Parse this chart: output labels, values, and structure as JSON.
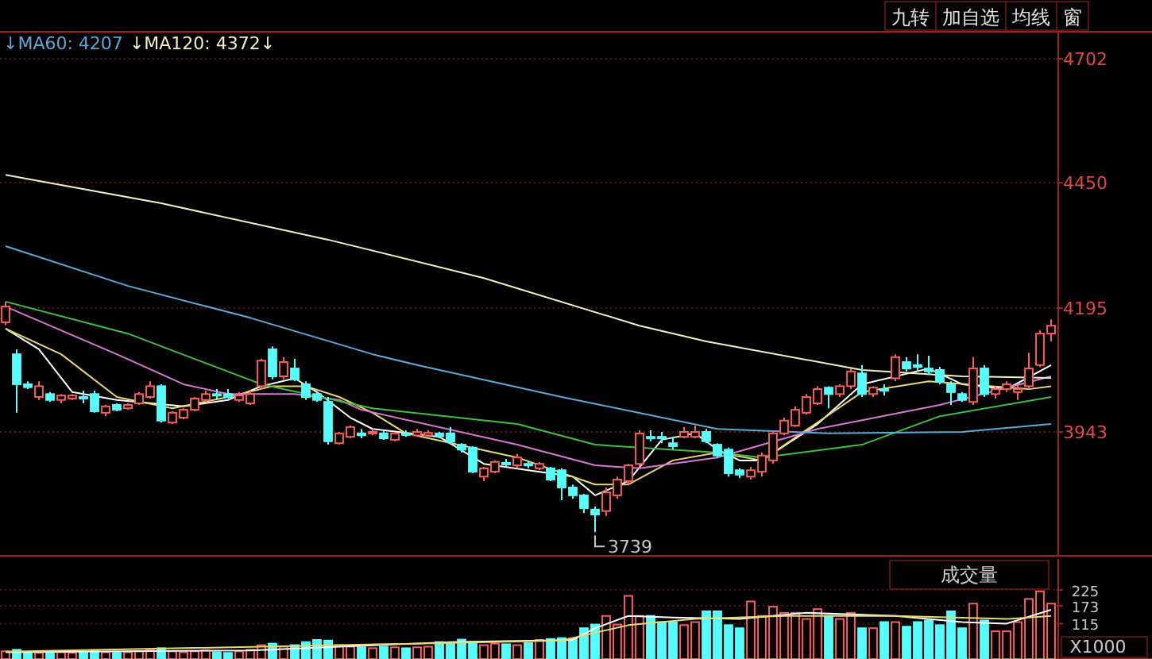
{
  "chart_data": [
    {
      "type": "candlestick",
      "categories": [
        null,
        null,
        null,
        null,
        null,
        null,
        null,
        null,
        null,
        null,
        null,
        null,
        null,
        null,
        null,
        null,
        null,
        null,
        null,
        null,
        null,
        null,
        null,
        null,
        null,
        null,
        null,
        null,
        null,
        null,
        null,
        null,
        null,
        null,
        null,
        null,
        null,
        null,
        null,
        null,
        null,
        null,
        null,
        null,
        null,
        null,
        null,
        null,
        null,
        null,
        null,
        null,
        null,
        null,
        null,
        null,
        null,
        null,
        null,
        null,
        null,
        null,
        null,
        null,
        null,
        null,
        null,
        null,
        null,
        null,
        null,
        null,
        null,
        null,
        null,
        null,
        null,
        null,
        null,
        null,
        null,
        null,
        null,
        null,
        null,
        null,
        null,
        null,
        null,
        null,
        null,
        null,
        null,
        null,
        null
      ],
      "ohlc": [
        [
          4166,
          4208,
          4160,
          4198
        ],
        [
          4101,
          4111,
          3982,
          4040
        ],
        [
          4040,
          4046,
          4030,
          4034
        ],
        [
          4014,
          4046,
          4008,
          4036
        ],
        [
          4020,
          4024,
          4004,
          4008
        ],
        [
          4008,
          4020,
          4001,
          4017
        ],
        [
          4011,
          4020,
          4008,
          4017
        ],
        [
          4014,
          4027,
          4001,
          4011
        ],
        [
          4020,
          4027,
          3982,
          3985
        ],
        [
          3982,
          3998,
          3975,
          3995
        ],
        [
          3998,
          4001,
          3985,
          3988
        ],
        [
          3991,
          4001,
          3988,
          3998
        ],
        [
          4001,
          4024,
          3998,
          4020
        ],
        [
          4014,
          4046,
          4011,
          4036
        ],
        [
          4036,
          4040,
          3962,
          3966
        ],
        [
          3962,
          3985,
          3959,
          3982
        ],
        [
          3972,
          3991,
          3969,
          3988
        ],
        [
          3988,
          4014,
          3985,
          4011
        ],
        [
          4008,
          4027,
          4004,
          4020
        ],
        [
          4020,
          4030,
          4011,
          4017
        ],
        [
          4020,
          4030,
          4011,
          4014
        ],
        [
          4008,
          4024,
          4004,
          4017
        ],
        [
          4001,
          4027,
          3998,
          4020
        ],
        [
          4036,
          4092,
          4030,
          4088
        ],
        [
          4111,
          4117,
          4050,
          4056
        ],
        [
          4056,
          4095,
          4050,
          4085
        ],
        [
          4072,
          4092,
          4046,
          4050
        ],
        [
          4040,
          4046,
          4008,
          4014
        ],
        [
          4020,
          4024,
          4004,
          4008
        ],
        [
          4004,
          4014,
          3917,
          3924
        ],
        [
          3920,
          3943,
          3917,
          3940
        ],
        [
          3933,
          3956,
          3930,
          3953
        ],
        [
          3940,
          3949,
          3930,
          3936
        ],
        [
          3940,
          3949,
          3936,
          3943
        ],
        [
          3940,
          3946,
          3927,
          3930
        ],
        [
          3927,
          3943,
          3924,
          3940
        ],
        [
          3940,
          3946,
          3933,
          3938
        ],
        [
          3936,
          3949,
          3933,
          3943
        ],
        [
          3936,
          3946,
          3933,
          3941
        ],
        [
          3940,
          3943,
          3930,
          3934
        ],
        [
          3940,
          3953,
          3917,
          3923
        ],
        [
          3917,
          3920,
          3901,
          3907
        ],
        [
          3911,
          3914,
          3859,
          3862
        ],
        [
          3852,
          3872,
          3843,
          3869
        ],
        [
          3862,
          3885,
          3859,
          3882
        ],
        [
          3880,
          3888,
          3872,
          3878
        ],
        [
          3875,
          3898,
          3869,
          3891
        ],
        [
          3878,
          3885,
          3869,
          3875
        ],
        [
          3869,
          3882,
          3865,
          3878
        ],
        [
          3869,
          3872,
          3843,
          3846
        ],
        [
          3865,
          3869,
          3804,
          3830
        ],
        [
          3830,
          3836,
          3807,
          3814
        ],
        [
          3814,
          3817,
          3778,
          3788
        ],
        [
          3785,
          3791,
          3739,
          3775
        ],
        [
          3782,
          3830,
          3772,
          3820
        ],
        [
          3814,
          3852,
          3807,
          3846
        ],
        [
          3843,
          3878,
          3836,
          3875
        ],
        [
          3878,
          3946,
          3872,
          3940
        ],
        [
          3933,
          3946,
          3924,
          3930
        ],
        [
          3933,
          3943,
          3920,
          3930
        ],
        [
          3920,
          3933,
          3907,
          3914
        ],
        [
          3933,
          3953,
          3930,
          3943
        ],
        [
          3933,
          3956,
          3930,
          3943
        ],
        [
          3943,
          3949,
          3920,
          3924
        ],
        [
          3917,
          3920,
          3891,
          3895
        ],
        [
          3907,
          3911,
          3852,
          3859
        ],
        [
          3865,
          3869,
          3849,
          3856
        ],
        [
          3852,
          3872,
          3846,
          3865
        ],
        [
          3862,
          3901,
          3852,
          3895
        ],
        [
          3885,
          3946,
          3878,
          3940
        ],
        [
          3940,
          3972,
          3936,
          3966
        ],
        [
          3956,
          3995,
          3953,
          3988
        ],
        [
          3982,
          4020,
          3978,
          4014
        ],
        [
          4001,
          4036,
          3998,
          4030
        ],
        [
          4033,
          4036,
          3991,
          4020
        ],
        [
          4020,
          4040,
          4014,
          4036
        ],
        [
          4036,
          4072,
          4030,
          4066
        ],
        [
          4062,
          4079,
          4014,
          4020
        ],
        [
          4020,
          4036,
          4014,
          4033
        ],
        [
          4030,
          4040,
          4017,
          4027
        ],
        [
          4052,
          4101,
          4046,
          4095
        ],
        [
          4085,
          4095,
          4066,
          4072
        ],
        [
          4079,
          4101,
          4066,
          4075
        ],
        [
          4072,
          4098,
          4059,
          4066
        ],
        [
          4069,
          4075,
          4040,
          4046
        ],
        [
          4040,
          4046,
          3998,
          4024
        ],
        [
          4020,
          4024,
          4004,
          4008
        ],
        [
          4004,
          4095,
          3998,
          4072
        ],
        [
          4072,
          4079,
          4014,
          4020
        ],
        [
          4020,
          4036,
          4011,
          4030
        ],
        [
          4030,
          4046,
          4024,
          4040
        ],
        [
          4024,
          4040,
          4008,
          4030
        ],
        [
          4036,
          4104,
          4030,
          4072
        ],
        [
          4079,
          4150,
          4075,
          4143
        ],
        [
          4143,
          4172,
          4127,
          4159
        ]
      ],
      "colors": [
        "#ff5c5c",
        "#54ffff",
        "#54ffff",
        "#ff5c5c",
        "#54ffff",
        "#ff5c5c",
        "#ff5c5c",
        "#54ffff",
        "#54ffff",
        "#ff5c5c",
        "#54ffff",
        "#ff5c5c",
        "#ff5c5c",
        "#ff5c5c",
        "#54ffff",
        "#ff5c5c",
        "#ff5c5c",
        "#ff5c5c",
        "#ff5c5c",
        "#54ffff",
        "#54ffff",
        "#ff5c5c",
        "#ff5c5c",
        "#ff5c5c",
        "#54ffff",
        "#ff5c5c",
        "#54ffff",
        "#54ffff",
        "#54ffff",
        "#54ffff",
        "#ff5c5c",
        "#ff5c5c",
        "#54ffff",
        "#ff5c5c",
        "#54ffff",
        "#ff5c5c",
        "#54ffff",
        "#ff5c5c",
        "#ff5c5c",
        "#54ffff",
        "#54ffff",
        "#54ffff",
        "#54ffff",
        "#ff5c5c",
        "#ff5c5c",
        "#54ffff",
        "#ff5c5c",
        "#54ffff",
        "#ff5c5c",
        "#54ffff",
        "#54ffff",
        "#54ffff",
        "#54ffff",
        "#54ffff",
        "#ff5c5c",
        "#ff5c5c",
        "#ff5c5c",
        "#ff5c5c",
        "#54ffff",
        "#54ffff",
        "#54ffff",
        "#ff5c5c",
        "#ff5c5c",
        "#54ffff",
        "#54ffff",
        "#54ffff",
        "#54ffff",
        "#ff5c5c",
        "#ff5c5c",
        "#ff5c5c",
        "#ff5c5c",
        "#ff5c5c",
        "#ff5c5c",
        "#ff5c5c",
        "#54ffff",
        "#ff5c5c",
        "#ff5c5c",
        "#54ffff",
        "#ff5c5c",
        "#54ffff",
        "#ff5c5c",
        "#54ffff",
        "#54ffff",
        "#54ffff",
        "#54ffff",
        "#54ffff",
        "#54ffff",
        "#ff5c5c",
        "#54ffff",
        "#ff5c5c",
        "#ff5c5c",
        "#ff5c5c",
        "#ff5c5c",
        "#ff5c5c",
        "#ff5c5c"
      ],
      "series": [
        {
          "type": "line",
          "color": "#ffffff",
          "values": [
            4153,
            null,
            null,
            4111,
            null,
            null,
            4024,
            null,
            null,
            null,
            4008,
            null,
            null,
            null,
            null,
            null,
            3995,
            null,
            null,
            null,
            4008,
            null,
            null,
            4036,
            null,
            null,
            4052,
            null,
            4024,
            null,
            null,
            3972,
            null,
            3949,
            null,
            null,
            null,
            null,
            null,
            3933,
            null,
            null,
            null,
            3878,
            null,
            null,
            null,
            null,
            null,
            null,
            null,
            3852,
            null,
            3814,
            null,
            null,
            3843,
            null,
            null,
            3927,
            null,
            null,
            3940,
            null,
            3907,
            null,
            3885,
            null,
            3885,
            null,
            null,
            null,
            null,
            3959,
            null,
            null,
            null,
            4040,
            null,
            null,
            null,
            null,
            null,
            4072,
            null,
            null,
            4040,
            null,
            null,
            null,
            4030,
            null,
            null,
            null,
            4079
          ]
        },
        {
          "type": "line",
          "color": "#e8d870",
          "values": [
            4153,
            null,
            null,
            null,
            null,
            4101,
            null,
            null,
            null,
            null,
            4014,
            null,
            null,
            null,
            null,
            3991,
            null,
            null,
            null,
            null,
            4014,
            null,
            null,
            null,
            4036,
            null,
            null,
            4036,
            null,
            null,
            4014,
            null,
            null,
            3982,
            null,
            null,
            3940,
            null,
            null,
            null,
            null,
            null,
            null,
            null,
            null,
            null,
            3891,
            null,
            null,
            null,
            null,
            null,
            null,
            3836,
            null,
            null,
            3836,
            null,
            null,
            null,
            3885,
            null,
            null,
            null,
            3901,
            null,
            null,
            null,
            3885,
            null,
            null,
            null,
            null,
            null,
            null,
            null,
            null,
            4024,
            null,
            null,
            null,
            null,
            null,
            4046,
            null,
            null,
            null,
            null,
            null,
            null,
            null,
            null,
            4030,
            null,
            4036
          ]
        },
        {
          "type": "line",
          "color": "#d878d0",
          "values": [
            4198,
            null,
            null,
            null,
            null,
            null,
            null,
            null,
            null,
            null,
            4101,
            null,
            null,
            null,
            null,
            null,
            4040,
            null,
            null,
            null,
            4020,
            null,
            null,
            null,
            null,
            null,
            4020,
            null,
            null,
            null,
            4008,
            null,
            3988,
            null,
            null,
            null,
            null,
            null,
            null,
            null,
            null,
            null,
            null,
            null,
            null,
            null,
            3917,
            null,
            null,
            null,
            null,
            null,
            null,
            3875,
            null,
            null,
            null,
            3869,
            null,
            null,
            null,
            null,
            null,
            null,
            3891,
            null,
            null,
            null,
            null,
            null,
            null,
            null,
            null,
            3949,
            null,
            null,
            null,
            null,
            null,
            null,
            null,
            null,
            null,
            null,
            3998,
            null,
            null,
            null,
            null,
            null,
            null,
            null,
            null,
            null,
            4056
          ]
        },
        {
          "type": "line",
          "color": "#40c040",
          "values": [
            4208,
            null,
            null,
            null,
            null,
            null,
            null,
            null,
            null,
            null,
            null,
            4143,
            null,
            null,
            null,
            null,
            null,
            null,
            null,
            null,
            null,
            null,
            null,
            4040,
            null,
            null,
            null,
            null,
            null,
            null,
            null,
            null,
            null,
            3991,
            null,
            null,
            null,
            null,
            null,
            null,
            null,
            null,
            null,
            null,
            null,
            null,
            3959,
            null,
            null,
            null,
            null,
            null,
            null,
            3917,
            null,
            null,
            null,
            null,
            null,
            null,
            null,
            null,
            null,
            null,
            3901,
            null,
            null,
            null,
            3891,
            null,
            null,
            null,
            null,
            null,
            null,
            null,
            null,
            3917,
            null,
            null,
            null,
            null,
            null,
            null,
            3975,
            null,
            null,
            null,
            null,
            null,
            null,
            null,
            null,
            null,
            4014
          ]
        },
        {
          "type": "line",
          "color": "#5aaad8",
          "name": "↓MA60: 4207",
          "values": [
            4321,
            null,
            null,
            null,
            null,
            null,
            null,
            null,
            null,
            null,
            null,
            4240,
            null,
            null,
            null,
            null,
            null,
            null,
            null,
            null,
            null,
            null,
            4175,
            null,
            null,
            null,
            null,
            null,
            null,
            null,
            null,
            null,
            null,
            4101,
            null,
            null,
            null,
            4079,
            null,
            null,
            null,
            null,
            null,
            null,
            null,
            null,
            null,
            null,
            null,
            null,
            4014,
            null,
            null,
            null,
            null,
            null,
            null,
            null,
            null,
            null,
            null,
            null,
            null,
            null,
            3949,
            null,
            null,
            null,
            null,
            null,
            null,
            null,
            null,
            null,
            3940,
            null,
            null,
            null,
            null,
            null,
            null,
            null,
            null,
            null,
            null,
            null,
            3943,
            null,
            null,
            null,
            null,
            null,
            null,
            null,
            3959
          ]
        },
        {
          "type": "line",
          "color": "#f0f0c0",
          "name": "↓MA120: 4372↓",
          "values": [
            4466,
            null,
            null,
            null,
            null,
            null,
            null,
            null,
            null,
            null,
            null,
            null,
            null,
            null,
            4408,
            null,
            null,
            null,
            null,
            null,
            null,
            null,
            null,
            null,
            null,
            null,
            null,
            null,
            null,
            4334,
            null,
            null,
            null,
            null,
            null,
            null,
            null,
            null,
            null,
            null,
            null,
            null,
            null,
            4256,
            null,
            null,
            null,
            null,
            null,
            null,
            null,
            null,
            null,
            null,
            null,
            null,
            null,
            4159,
            null,
            null,
            null,
            null,
            null,
            4127,
            null,
            null,
            null,
            null,
            null,
            null,
            null,
            null,
            null,
            null,
            null,
            null,
            null,
            4069,
            null,
            null,
            null,
            null,
            null,
            null,
            null,
            null,
            4056,
            null,
            null,
            null,
            null,
            null,
            null,
            null,
            4053
          ]
        }
      ],
      "ylim": [
        3691,
        4757
      ],
      "yticks": [
        4702,
        4450,
        4195,
        3943
      ],
      "grid": "y",
      "legend": "top left",
      "annotations": [
        "九转",
        "加自选",
        "均线",
        "窗",
        "3739"
      ]
    },
    {
      "type": "bar",
      "title": "成交量",
      "categories": [
        null,
        null,
        null,
        null,
        null,
        null,
        null,
        null,
        null,
        null,
        null,
        null,
        null,
        null,
        null,
        null,
        null,
        null,
        null,
        null,
        null,
        null,
        null,
        null,
        null,
        null,
        null,
        null,
        null,
        null,
        null,
        null,
        null,
        null,
        null,
        null,
        null,
        null,
        null,
        null,
        null,
        null,
        null,
        null,
        null,
        null,
        null,
        null,
        null,
        null,
        null,
        null,
        null,
        null,
        null,
        null,
        null,
        null,
        null,
        null,
        null,
        null,
        null,
        null,
        null,
        null,
        null,
        null,
        null,
        null,
        null,
        null,
        null,
        null,
        null,
        null,
        null,
        null,
        null,
        null,
        null,
        null,
        null,
        null,
        null,
        null,
        null,
        null,
        null,
        null,
        null,
        null,
        null,
        null,
        null
      ],
      "series": [
        {
          "type": "bar",
          "colors": [
            "#ff5c5c",
            "#54ffff",
            "#54ffff",
            "#ff5c5c",
            "#54ffff",
            "#ff5c5c",
            "#ff5c5c",
            "#54ffff",
            "#54ffff",
            "#ff5c5c",
            "#54ffff",
            "#ff5c5c",
            "#ff5c5c",
            "#ff5c5c",
            "#54ffff",
            "#ff5c5c",
            "#ff5c5c",
            "#ff5c5c",
            "#ff5c5c",
            "#54ffff",
            "#54ffff",
            "#ff5c5c",
            "#ff5c5c",
            "#ff5c5c",
            "#54ffff",
            "#ff5c5c",
            "#54ffff",
            "#54ffff",
            "#54ffff",
            "#54ffff",
            "#ff5c5c",
            "#ff5c5c",
            "#54ffff",
            "#ff5c5c",
            "#54ffff",
            "#ff5c5c",
            "#54ffff",
            "#ff5c5c",
            "#ff5c5c",
            "#54ffff",
            "#54ffff",
            "#54ffff",
            "#54ffff",
            "#ff5c5c",
            "#ff5c5c",
            "#54ffff",
            "#ff5c5c",
            "#54ffff",
            "#ff5c5c",
            "#54ffff",
            "#54ffff",
            "#54ffff",
            "#54ffff",
            "#54ffff",
            "#ff5c5c",
            "#ff5c5c",
            "#ff5c5c",
            "#ff5c5c",
            "#54ffff",
            "#54ffff",
            "#54ffff",
            "#ff5c5c",
            "#ff5c5c",
            "#54ffff",
            "#54ffff",
            "#54ffff",
            "#54ffff",
            "#ff5c5c",
            "#ff5c5c",
            "#ff5c5c",
            "#ff5c5c",
            "#ff5c5c",
            "#ff5c5c",
            "#ff5c5c",
            "#54ffff",
            "#ff5c5c",
            "#ff5c5c",
            "#54ffff",
            "#ff5c5c",
            "#54ffff",
            "#ff5c5c",
            "#54ffff",
            "#54ffff",
            "#54ffff",
            "#54ffff",
            "#54ffff",
            "#54ffff",
            "#ff5c5c",
            "#54ffff",
            "#ff5c5c",
            "#ff5c5c",
            "#ff5c5c",
            "#ff5c5c",
            "#ff5c5c",
            "#ff5c5c"
          ],
          "values": [
            25,
            30,
            22,
            20,
            25,
            22,
            20,
            20,
            28,
            22,
            20,
            22,
            25,
            28,
            35,
            25,
            22,
            25,
            28,
            22,
            20,
            25,
            30,
            45,
            50,
            40,
            45,
            55,
            62,
            60,
            45,
            40,
            38,
            35,
            40,
            38,
            35,
            38,
            40,
            55,
            50,
            63,
            55,
            45,
            50,
            48,
            45,
            52,
            62,
            65,
            68,
            65,
            100,
            112,
            140,
            112,
            205,
            140,
            140,
            120,
            120,
            110,
            120,
            155,
            155,
            110,
            100,
            187,
            140,
            170,
            150,
            150,
            130,
            162,
            140,
            130,
            150,
            100,
            100,
            120,
            120,
            105,
            120,
            125,
            110,
            155,
            100,
            180,
            125,
            90,
            90,
            120,
            195,
            220,
            180
          ]
        },
        {
          "type": "line",
          "color": "#ffffff",
          "values": [
            22,
            null,
            null,
            null,
            null,
            null,
            null,
            null,
            null,
            null,
            null,
            null,
            null,
            null,
            null,
            null,
            null,
            null,
            null,
            null,
            null,
            null,
            28,
            null,
            null,
            null,
            null,
            null,
            null,
            null,
            null,
            null,
            null,
            null,
            null,
            null,
            null,
            null,
            null,
            null,
            55,
            null,
            null,
            null,
            null,
            null,
            null,
            null,
            null,
            null,
            null,
            62,
            null,
            100,
            null,
            null,
            140,
            null,
            null,
            null,
            135,
            null,
            null,
            null,
            null,
            null,
            130,
            null,
            null,
            null,
            null,
            null,
            150,
            null,
            null,
            null,
            null,
            null,
            null,
            null,
            140,
            null,
            null,
            null,
            null,
            null,
            120,
            null,
            null,
            null,
            115,
            null,
            null,
            null,
            160
          ]
        },
        {
          "type": "line",
          "color": "#e8d870",
          "values": [
            24,
            null,
            null,
            null,
            null,
            null,
            null,
            null,
            null,
            null,
            null,
            null,
            null,
            null,
            null,
            null,
            null,
            null,
            null,
            null,
            null,
            null,
            null,
            null,
            null,
            null,
            null,
            null,
            null,
            null,
            45,
            null,
            null,
            null,
            null,
            null,
            null,
            null,
            null,
            null,
            null,
            null,
            null,
            null,
            null,
            null,
            null,
            null,
            null,
            null,
            60,
            null,
            null,
            null,
            null,
            null,
            110,
            null,
            null,
            null,
            null,
            null,
            130,
            null,
            null,
            null,
            null,
            null,
            null,
            null,
            140,
            null,
            null,
            null,
            null,
            null,
            null,
            null,
            null,
            null,
            140,
            null,
            null,
            null,
            null,
            null,
            null,
            null,
            null,
            null,
            130,
            null,
            null,
            null,
            140
          ]
        }
      ],
      "ylim": [
        0,
        325
      ],
      "yticks": [
        115,
        173,
        225
      ],
      "grid": "y",
      "annotations": [
        "X1000"
      ]
    }
  ]
}
